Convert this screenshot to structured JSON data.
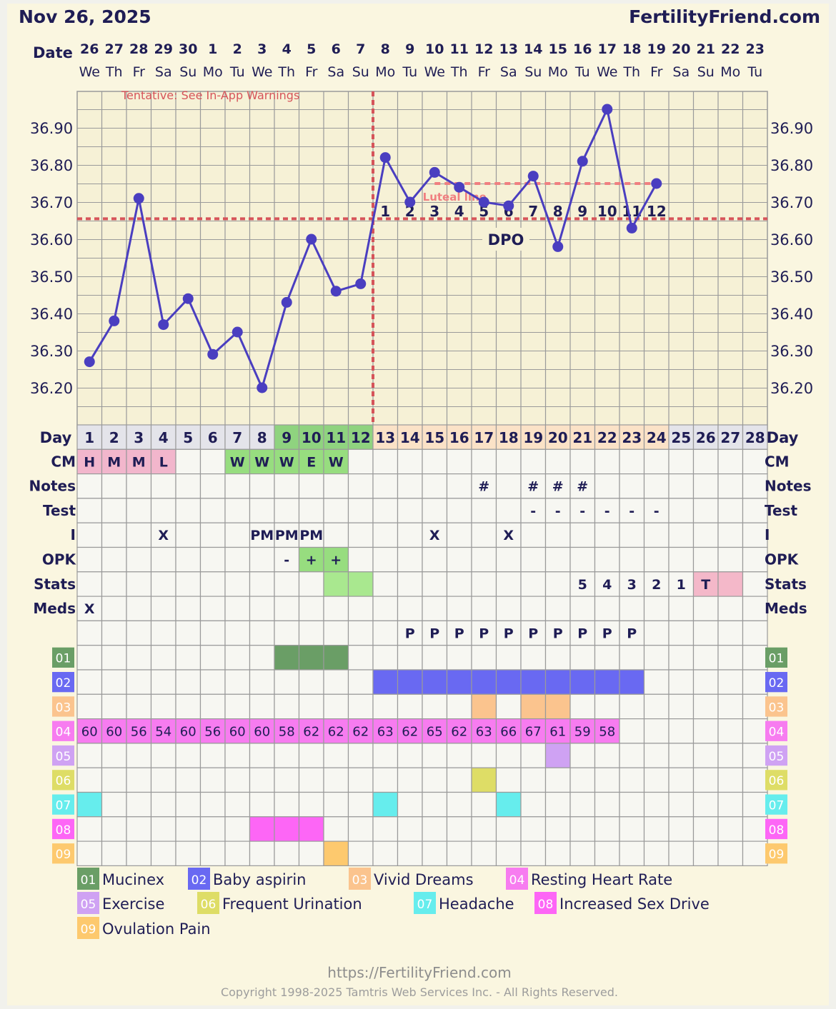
{
  "header": {
    "date": "Nov 26, 2025",
    "brand": "FertilityFriend.com"
  },
  "labels": {
    "date": "Date",
    "day": "Day",
    "tentative": "Tentative: See In-App Warnings",
    "dpo": "DPO",
    "luteal": "Luteal line",
    "rows": [
      "CM",
      "Notes",
      "Test",
      "I",
      "OPK",
      "Stats",
      "Meds"
    ]
  },
  "dates": [
    "26",
    "27",
    "28",
    "29",
    "30",
    "1",
    "2",
    "3",
    "4",
    "5",
    "6",
    "7",
    "8",
    "9",
    "10",
    "11",
    "12",
    "13",
    "14",
    "15",
    "16",
    "17",
    "18",
    "19",
    "20",
    "21",
    "22",
    "23"
  ],
  "weekdays": [
    "We",
    "Th",
    "Fr",
    "Sa",
    "Su",
    "Mo",
    "Tu",
    "We",
    "Th",
    "Fr",
    "Sa",
    "Su",
    "Mo",
    "Tu",
    "We",
    "Th",
    "Fr",
    "Sa",
    "Su",
    "Mo",
    "Tu",
    "We",
    "Th",
    "Fr",
    "Sa",
    "Su",
    "Mo",
    "Tu"
  ],
  "chart_data": {
    "type": "line",
    "title": "",
    "ylabel": "",
    "xlabel": "",
    "ylim": [
      36.1,
      37.0
    ],
    "y_ticks": [
      "36.90",
      "36.80",
      "36.70",
      "36.60",
      "36.50",
      "36.40",
      "36.30",
      "36.20"
    ],
    "cycle_days": [
      1,
      2,
      3,
      4,
      5,
      6,
      7,
      8,
      9,
      10,
      11,
      12,
      13,
      14,
      15,
      16,
      17,
      18,
      19,
      20,
      21,
      22,
      23,
      24,
      25,
      26,
      27,
      28
    ],
    "temperatures": [
      36.27,
      36.38,
      36.71,
      36.37,
      36.44,
      36.29,
      36.35,
      36.2,
      36.43,
      36.6,
      36.46,
      36.48,
      36.82,
      36.7,
      36.78,
      36.74,
      36.7,
      36.69,
      36.77,
      36.58,
      36.81,
      36.95,
      36.63,
      36.75,
      null,
      null,
      null,
      null
    ],
    "coverline": 36.655,
    "ovulation_day": 12,
    "luteal_line": {
      "from_day": 15,
      "to_day": 24,
      "value": 36.75
    },
    "dpo_labels": [
      "1",
      "2",
      "3",
      "4",
      "5",
      "6",
      "7",
      "8",
      "9",
      "10",
      "11",
      "12"
    ],
    "dpo_start_day": 13,
    "grid": true
  },
  "rows": {
    "cm": [
      "H",
      "M",
      "M",
      "L",
      "",
      "",
      "W",
      "W",
      "W",
      "E",
      "W",
      "",
      "",
      "",
      "",
      "",
      "",
      "",
      "",
      "",
      "",
      "",
      "",
      "",
      "",
      "",
      "",
      ""
    ],
    "cm_colors": [
      "pink",
      "pink",
      "pink",
      "pink",
      "",
      "",
      "green",
      "green",
      "green",
      "green",
      "green",
      "",
      "",
      "",
      "",
      "",
      "",
      "",
      "",
      "",
      "",
      "",
      "",
      "",
      "",
      "",
      "",
      ""
    ],
    "notes": [
      "",
      "",
      "",
      "",
      "",
      "",
      "",
      "",
      "",
      "",
      "",
      "",
      "",
      "",
      "",
      "",
      "#",
      "",
      "#",
      "#",
      "#",
      "",
      "",
      "",
      "",
      "",
      "",
      ""
    ],
    "test": [
      "",
      "",
      "",
      "",
      "",
      "",
      "",
      "",
      "",
      "",
      "",
      "",
      "",
      "",
      "",
      "",
      "",
      "",
      "-",
      "-",
      "-",
      "-",
      "-",
      "-",
      "",
      "",
      "",
      ""
    ],
    "i": [
      "",
      "",
      "",
      "X",
      "",
      "",
      "",
      "PM",
      "PM",
      "PM",
      "",
      "",
      "",
      "",
      "X",
      "",
      "",
      "X",
      "",
      "",
      "",
      "",
      "",
      "",
      "",
      "",
      "",
      ""
    ],
    "opk": [
      "",
      "",
      "",
      "",
      "",
      "",
      "",
      "",
      "-",
      "+",
      "+",
      "",
      "",
      "",
      "",
      "",
      "",
      "",
      "",
      "",
      "",
      "",
      "",
      "",
      "",
      "",
      "",
      ""
    ],
    "stats": [
      "",
      "",
      "",
      "",
      "",
      "",
      "",
      "",
      "",
      "",
      "",
      "",
      "",
      "",
      "",
      "",
      "",
      "",
      "",
      "",
      "5",
      "4",
      "3",
      "2",
      "1",
      "T",
      "",
      ""
    ],
    "meds": [
      "X",
      "",
      "",
      "",
      "",
      "",
      "",
      "",
      "",
      "",
      "",
      "",
      "",
      "",
      "",
      "",
      "",
      "",
      "",
      "",
      "",
      "",
      "",
      "",
      "",
      "",
      "",
      ""
    ],
    "p": [
      "",
      "",
      "",
      "",
      "",
      "",
      "",
      "",
      "",
      "",
      "",
      "",
      "",
      "P",
      "P",
      "P",
      "P",
      "P",
      "P",
      "P",
      "P",
      "P",
      "P",
      "",
      "",
      "",
      "",
      ""
    ]
  },
  "symptoms": [
    {
      "code": "01",
      "name": "Mucinex",
      "color": "#6a9e66",
      "days": [
        9,
        10,
        11
      ]
    },
    {
      "code": "02",
      "name": "Baby aspirin",
      "color": "#6969f2",
      "days": [
        13,
        14,
        15,
        16,
        17,
        18,
        19,
        20,
        21,
        22,
        23
      ]
    },
    {
      "code": "03",
      "name": "Vivid Dreams",
      "color": "#fbc48e",
      "days": [
        17,
        19,
        20
      ]
    },
    {
      "code": "04",
      "name": "Resting Heart Rate",
      "color": "#f77cf0",
      "values": [
        "60",
        "60",
        "56",
        "54",
        "60",
        "56",
        "60",
        "60",
        "58",
        "62",
        "62",
        "62",
        "63",
        "62",
        "65",
        "62",
        "63",
        "66",
        "67",
        "61",
        "59",
        "58",
        "",
        "",
        "",
        "",
        "",
        ""
      ]
    },
    {
      "code": "05",
      "name": "Exercise",
      "color": "#cfa2f3",
      "days": [
        20
      ]
    },
    {
      "code": "06",
      "name": "Frequent Urination",
      "color": "#dedd66",
      "days": [
        17
      ]
    },
    {
      "code": "07",
      "name": "Headache",
      "color": "#66eded",
      "days": [
        1,
        13,
        18
      ]
    },
    {
      "code": "08",
      "name": "Increased Sex Drive",
      "color": "#fd66f6",
      "days": [
        8,
        9,
        10
      ]
    },
    {
      "code": "09",
      "name": "Ovulation Pain",
      "color": "#fdc96e",
      "days": [
        11
      ]
    }
  ],
  "colors": {
    "line": "#4a3ec0",
    "coverline": "#d6545a",
    "grid": "#9a9a9a",
    "text": "#1f1d55",
    "cell": "#f7f7f2",
    "plot": "#f6f1d6",
    "day_green": "#8fd37f",
    "day_peach": "#fbe2c7",
    "day_gray": "#e4e4ea",
    "cm_pink": "#f2b6cc",
    "cm_green": "#97dd7f",
    "stats_green": "#a9e88f",
    "stats_pink": "#f4b8c9"
  },
  "footer": {
    "url": "https://FertilityFriend.com",
    "copyright": "Copyright 1998-2025 Tamtris Web Services Inc. - All Rights Reserved."
  }
}
